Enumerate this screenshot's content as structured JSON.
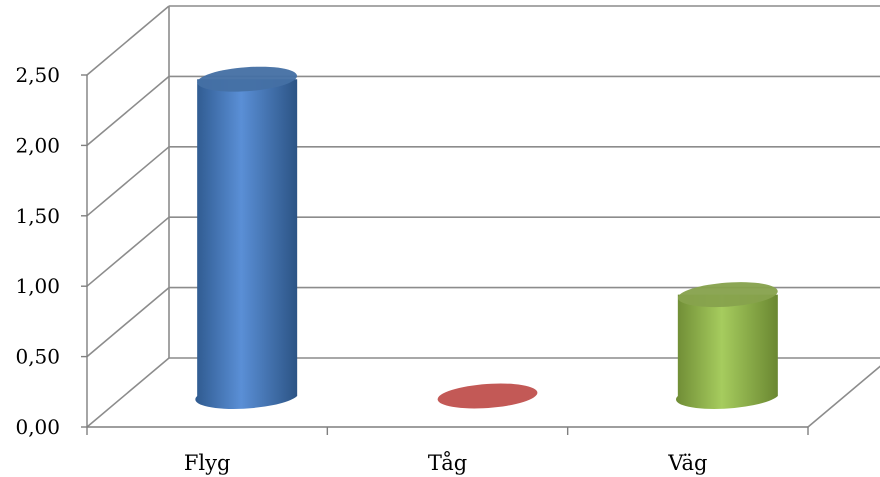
{
  "chart_data": {
    "type": "bar",
    "style": "3d-cylinder",
    "categories": [
      "Flyg",
      "Tåg",
      "Väg"
    ],
    "values": [
      2.25,
      0.0,
      0.72
    ],
    "ylim": [
      0,
      2.5
    ],
    "y_ticks": [
      "0,00",
      "0,50",
      "1,00",
      "1,50",
      "2,00",
      "2,50"
    ],
    "colors": [
      "#4f81bd",
      "#c0504d",
      "#9bbb59"
    ],
    "grid": true,
    "legend": "none"
  }
}
